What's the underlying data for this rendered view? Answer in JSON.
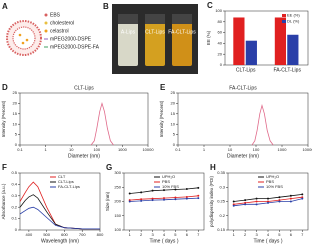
{
  "diagram": {
    "panel": "A",
    "legend": [
      "EBS",
      "cholesterol",
      "celastrol",
      "mPEG2000-DSPE",
      "mPEG2000-DSPE-FA"
    ]
  },
  "photo": {
    "panel": "B",
    "labels": [
      "A-Lips",
      "CLT-Lips",
      "FA-CLT-Lips"
    ]
  },
  "chart_data": [
    {
      "panel": "C",
      "type": "bar",
      "ylabel": "EE (%)",
      "categories": [
        "CLT-Lips",
        "FA-CLT-Lips"
      ],
      "series": [
        {
          "name": "EE (%)",
          "color": "#e02020",
          "values": [
            88,
            88
          ]
        },
        {
          "name": "DL (%)",
          "color": "#2a3fa8",
          "values": [
            45,
            56
          ]
        }
      ],
      "ylim": [
        0,
        100
      ],
      "yticks": [
        0,
        20,
        40,
        60,
        80,
        100
      ]
    },
    {
      "panel": "D",
      "type": "line",
      "title": "CLT-Lips",
      "xlabel": "Diameter (nm)",
      "ylabel": "Intensity (Percent)",
      "xscale": "log",
      "x": [
        60,
        80,
        100,
        130,
        160,
        200,
        260,
        340,
        450
      ],
      "series": [
        {
          "name": "CLT-Lips",
          "color": "#e06a8a",
          "values": [
            0,
            2,
            8,
            16,
            20,
            16,
            8,
            2,
            0
          ]
        }
      ],
      "xlim": [
        0.1,
        10000
      ],
      "xticks": [
        0.1,
        1,
        10,
        100,
        1000,
        10000
      ],
      "ylim": [
        0,
        25
      ],
      "yticks": [
        0,
        5,
        10,
        15,
        20,
        25
      ],
      "legend": false
    },
    {
      "panel": "E",
      "type": "line",
      "title": "FA-CLT-Lips",
      "xlabel": "Diameter (nm)",
      "ylabel": "Intensity (Percent)",
      "xscale": "log",
      "x": [
        70,
        90,
        110,
        140,
        170,
        210,
        270,
        350,
        460
      ],
      "series": [
        {
          "name": "FA-CLT-Lips",
          "color": "#e06a8a",
          "values": [
            0,
            2,
            7,
            15,
            19,
            15,
            7,
            2,
            0
          ]
        }
      ],
      "xlim": [
        0.1,
        10000
      ],
      "xticks": [
        0.1,
        1,
        10,
        100,
        1000,
        10000
      ],
      "ylim": [
        0,
        25
      ],
      "yticks": [
        0,
        5,
        10,
        15,
        20,
        25
      ],
      "legend": false
    },
    {
      "panel": "F",
      "type": "line",
      "xlabel": "Wavelength (nm)",
      "ylabel": "Absorbance (a.u.)",
      "x": [
        350,
        380,
        400,
        425,
        450,
        500,
        550,
        600,
        700,
        800
      ],
      "series": [
        {
          "name": "CLT",
          "color": "#e02020",
          "values": [
            0.25,
            0.33,
            0.38,
            0.42,
            0.38,
            0.2,
            0.05,
            0.02,
            0.01,
            0.01
          ]
        },
        {
          "name": "CLT-Lips",
          "color": "#111111",
          "values": [
            0.2,
            0.26,
            0.29,
            0.31,
            0.28,
            0.16,
            0.05,
            0.02,
            0.01,
            0.01
          ]
        },
        {
          "name": "FA-CLT-Lips",
          "color": "#2a3fa8",
          "values": [
            0.14,
            0.17,
            0.19,
            0.2,
            0.18,
            0.11,
            0.04,
            0.02,
            0.01,
            0.01
          ]
        }
      ],
      "xlim": [
        350,
        800
      ],
      "xticks": [
        400,
        500,
        600,
        700,
        800
      ],
      "ylim": [
        0,
        0.5
      ],
      "yticks": [
        0,
        0.1,
        0.2,
        0.3,
        0.4,
        0.5
      ],
      "legend": true
    },
    {
      "panel": "G",
      "type": "line",
      "markers": true,
      "xlabel": "Time ( days )",
      "ylabel": "Size (nm)",
      "x": [
        1,
        2,
        3,
        4,
        5,
        6,
        7
      ],
      "series": [
        {
          "name": "UPH₂O",
          "color": "#111111",
          "values": [
            228,
            232,
            238,
            240,
            242,
            244,
            248
          ]
        },
        {
          "name": "PBS",
          "color": "#e02020",
          "values": [
            205,
            208,
            210,
            212,
            214,
            216,
            220
          ]
        },
        {
          "name": "10% FBS",
          "color": "#2a3fa8",
          "values": [
            200,
            202,
            205,
            206,
            208,
            210,
            212
          ]
        }
      ],
      "xlim": [
        0.5,
        7.5
      ],
      "xticks": [
        1,
        2,
        3,
        4,
        5,
        6,
        7
      ],
      "ylim": [
        100,
        300
      ],
      "yticks": [
        100,
        150,
        200,
        250,
        300
      ],
      "legend": true
    },
    {
      "panel": "H",
      "type": "line",
      "markers": true,
      "xlabel": "Time ( days )",
      "ylabel": "polydispersity index (PDI)",
      "x": [
        1,
        2,
        3,
        4,
        5,
        6,
        7
      ],
      "series": [
        {
          "name": "UPH₂O",
          "color": "#111111",
          "values": [
            0.25,
            0.255,
            0.26,
            0.26,
            0.265,
            0.27,
            0.275
          ]
        },
        {
          "name": "PBS",
          "color": "#e02020",
          "values": [
            0.24,
            0.245,
            0.25,
            0.25,
            0.255,
            0.26,
            0.265
          ]
        },
        {
          "name": "10% FBS",
          "color": "#2a3fa8",
          "values": [
            0.235,
            0.24,
            0.24,
            0.245,
            0.25,
            0.25,
            0.26
          ]
        }
      ],
      "xlim": [
        0.5,
        7.5
      ],
      "xticks": [
        1,
        2,
        3,
        4,
        5,
        6,
        7
      ],
      "ylim": [
        0.15,
        0.35
      ],
      "yticks": [
        0.15,
        0.2,
        0.25,
        0.3,
        0.35
      ],
      "legend": true
    }
  ]
}
